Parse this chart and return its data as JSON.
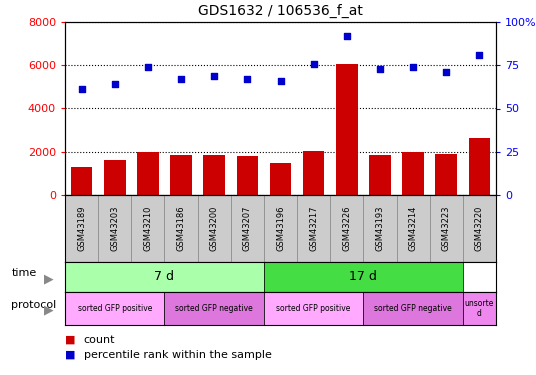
{
  "title": "GDS1632 / 106536_f_at",
  "samples": [
    "GSM43189",
    "GSM43203",
    "GSM43210",
    "GSM43186",
    "GSM43200",
    "GSM43207",
    "GSM43196",
    "GSM43217",
    "GSM43226",
    "GSM43193",
    "GSM43214",
    "GSM43223",
    "GSM43220"
  ],
  "counts": [
    1300,
    1600,
    2000,
    1850,
    1850,
    1800,
    1500,
    2050,
    6050,
    1850,
    2000,
    1900,
    2650
  ],
  "percentiles": [
    61,
    64,
    74,
    67,
    69,
    67,
    66,
    76,
    92,
    73,
    74,
    71,
    81
  ],
  "bar_color": "#cc0000",
  "dot_color": "#0000cc",
  "left_ylim": [
    0,
    8000
  ],
  "right_ylim": [
    0,
    100
  ],
  "left_yticks": [
    0,
    2000,
    4000,
    6000,
    8000
  ],
  "right_yticks": [
    0,
    25,
    50,
    75,
    100
  ],
  "time_groups": [
    {
      "label": "7 d",
      "start": 0,
      "end": 6,
      "color": "#aaffaa"
    },
    {
      "label": "17 d",
      "start": 6,
      "end": 12,
      "color": "#44dd44"
    }
  ],
  "protocol_groups": [
    {
      "label": "sorted GFP positive",
      "start": 0,
      "end": 3,
      "color": "#ffaaff"
    },
    {
      "label": "sorted GFP negative",
      "start": 3,
      "end": 6,
      "color": "#dd77dd"
    },
    {
      "label": "sorted GFP positive",
      "start": 6,
      "end": 9,
      "color": "#ffaaff"
    },
    {
      "label": "sorted GFP negative",
      "start": 9,
      "end": 12,
      "color": "#dd77dd"
    },
    {
      "label": "unsorte\nd",
      "start": 12,
      "end": 13,
      "color": "#ee88ee"
    }
  ],
  "sample_box_color": "#cccccc",
  "sample_box_edge": "#888888",
  "legend_count_color": "#cc0000",
  "legend_dot_color": "#0000cc",
  "bg_color": "#ffffff"
}
